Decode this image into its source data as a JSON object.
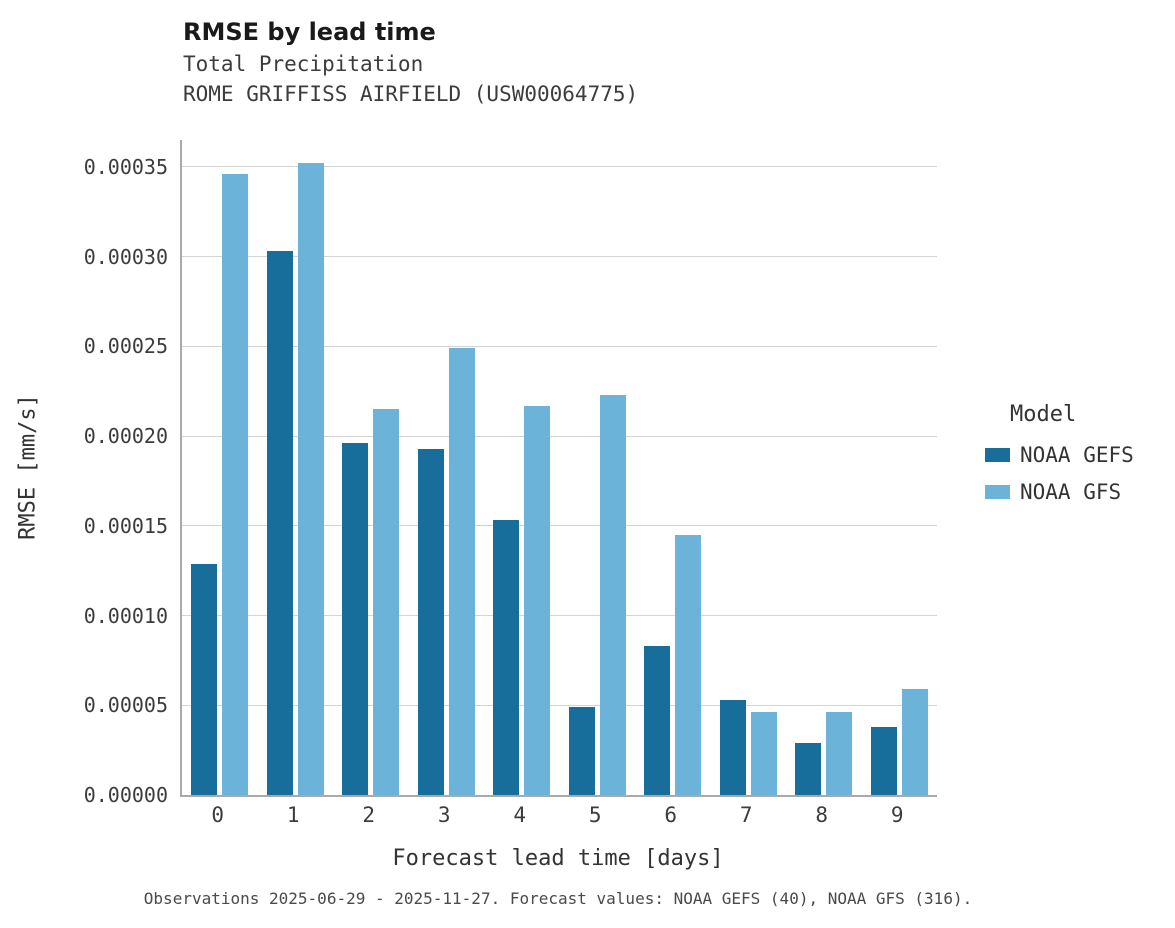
{
  "chart_data": {
    "type": "bar",
    "title": "RMSE by lead time",
    "subtitle1": "Total Precipitation",
    "subtitle2": "ROME GRIFFISS AIRFIELD (USW00064775)",
    "xlabel": "Forecast lead time [days]",
    "ylabel": "RMSE [mm/s]",
    "legend_title": "Model",
    "caption": "Observations 2025-06-29 - 2025-11-27. Forecast values: NOAA GEFS (40), NOAA GFS (316).",
    "categories": [
      "0",
      "1",
      "2",
      "3",
      "4",
      "5",
      "6",
      "7",
      "8",
      "9"
    ],
    "series": [
      {
        "name": "NOAA GEFS",
        "color": "#186e9b",
        "values": [
          0.000129,
          0.000303,
          0.000196,
          0.000193,
          0.000153,
          4.9e-05,
          8.3e-05,
          5.3e-05,
          2.9e-05,
          3.8e-05
        ]
      },
      {
        "name": "NOAA GFS",
        "color": "#6cb3da",
        "values": [
          0.000346,
          0.000352,
          0.000215,
          0.000249,
          0.000217,
          0.000223,
          0.000145,
          4.6e-05,
          4.6e-05,
          5.9e-05
        ]
      }
    ],
    "yticks": [
      {
        "label": "0.00000",
        "value": 0.0
      },
      {
        "label": "0.00005",
        "value": 5e-05
      },
      {
        "label": "0.00010",
        "value": 0.0001
      },
      {
        "label": "0.00015",
        "value": 0.00015
      },
      {
        "label": "0.00020",
        "value": 0.0002
      },
      {
        "label": "0.00025",
        "value": 0.00025
      },
      {
        "label": "0.00030",
        "value": 0.0003
      },
      {
        "label": "0.00035",
        "value": 0.00035
      }
    ],
    "ylim": [
      0,
      0.000365
    ],
    "grid": true,
    "legend_position": "right"
  }
}
